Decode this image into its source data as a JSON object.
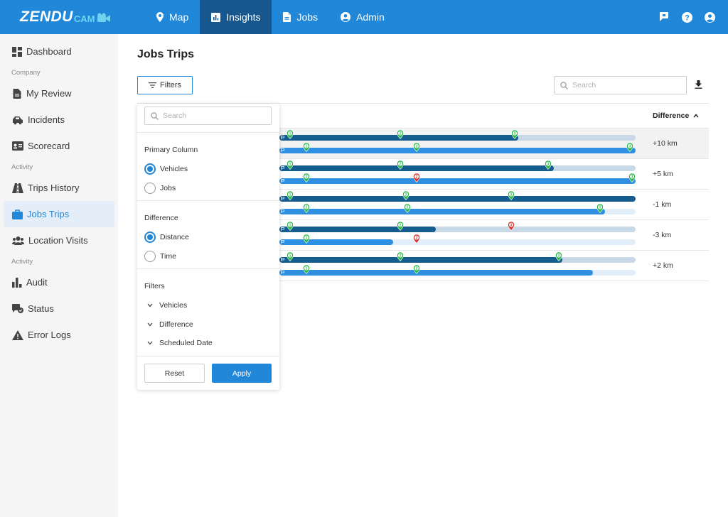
{
  "brand": {
    "logo_main": "ZENDU",
    "logo_sub": "CAM"
  },
  "nav": [
    {
      "label": "Map",
      "icon": "location-pin-icon",
      "active": false
    },
    {
      "label": "Insights",
      "icon": "bar-chart-icon",
      "active": true
    },
    {
      "label": "Jobs",
      "icon": "document-icon",
      "active": false
    },
    {
      "label": "Admin",
      "icon": "user-circle-icon",
      "active": false
    }
  ],
  "top_icons": [
    "flag-icon",
    "help-icon",
    "account-icon"
  ],
  "sidebar": {
    "dashboard": "Dashboard",
    "section_company": "Company",
    "my_review": "My Review",
    "incidents": "Incidents",
    "scorecard": "Scorecard",
    "section_activity_1": "Activity",
    "trips_history": "Trips History",
    "jobs_trips": "Jobs Trips",
    "location_visits": "Location Visits",
    "section_activity_2": "Activity",
    "audit": "Audit",
    "status": "Status",
    "error_logs": "Error Logs",
    "active": "Jobs Trips"
  },
  "main": {
    "title": "Jobs Trips",
    "filters_label": "Filters",
    "search_placeholder": "Search",
    "difference_header": "Difference"
  },
  "rows": [
    {
      "difference": "+10 km",
      "highlighted": true,
      "planned": {
        "progress": 0.67,
        "stops": [
          {
            "n": "1",
            "at": 0.03,
            "status": "ok"
          },
          {
            "n": "2",
            "at": 0.34,
            "status": "ok"
          },
          {
            "n": "3",
            "at": 0.66,
            "status": "ok"
          }
        ]
      },
      "actual": {
        "progress": 1.0,
        "stops": [
          {
            "n": "1",
            "at": 0.075,
            "status": "ok"
          },
          {
            "n": "2",
            "at": 0.385,
            "status": "ok"
          },
          {
            "n": "3",
            "at": 0.985,
            "status": "ok"
          }
        ]
      }
    },
    {
      "difference": "+5 km",
      "highlighted": false,
      "planned": {
        "progress": 0.77,
        "stops": [
          {
            "n": "1",
            "at": 0.03,
            "status": "ok"
          },
          {
            "n": "2",
            "at": 0.34,
            "status": "ok"
          },
          {
            "n": "3",
            "at": 0.755,
            "status": "ok"
          }
        ]
      },
      "actual": {
        "progress": 1.0,
        "stops": [
          {
            "n": "1",
            "at": 0.075,
            "status": "ok"
          },
          {
            "n": "2",
            "at": 0.385,
            "status": "late"
          },
          {
            "n": "3",
            "at": 0.99,
            "status": "ok"
          }
        ]
      }
    },
    {
      "difference": "-1 km",
      "highlighted": false,
      "planned": {
        "progress": 1.0,
        "stops": [
          {
            "n": "1",
            "at": 0.03,
            "status": "ok"
          },
          {
            "n": "2",
            "at": 0.355,
            "status": "ok"
          },
          {
            "n": "3",
            "at": 0.65,
            "status": "ok"
          }
        ]
      },
      "actual": {
        "progress": 0.915,
        "stops": [
          {
            "n": "1",
            "at": 0.075,
            "status": "ok"
          },
          {
            "n": "2",
            "at": 0.36,
            "status": "ok"
          },
          {
            "n": "3",
            "at": 0.9,
            "status": "ok"
          }
        ]
      }
    },
    {
      "difference": "-3 km",
      "highlighted": false,
      "planned": {
        "progress": 0.44,
        "stops": [
          {
            "n": "1",
            "at": 0.03,
            "status": "ok"
          },
          {
            "n": "2",
            "at": 0.34,
            "status": "ok"
          },
          {
            "n": "3",
            "at": 0.65,
            "status": "late"
          }
        ]
      },
      "actual": {
        "progress": 0.32,
        "stops": [
          {
            "n": "1",
            "at": 0.075,
            "status": "ok"
          },
          {
            "n": "2",
            "at": 0.385,
            "status": "late"
          }
        ]
      }
    },
    {
      "difference": "+2 km",
      "highlighted": false,
      "planned": {
        "progress": 0.795,
        "stops": [
          {
            "n": "1",
            "at": 0.03,
            "status": "ok"
          },
          {
            "n": "2",
            "at": 0.34,
            "status": "ok"
          },
          {
            "n": "3",
            "at": 0.785,
            "status": "ok"
          }
        ]
      },
      "actual": {
        "progress": 0.88,
        "stops": [
          {
            "n": "1",
            "at": 0.075,
            "status": "ok"
          },
          {
            "n": "2",
            "at": 0.385,
            "status": "ok"
          }
        ]
      }
    }
  ],
  "filter_panel": {
    "search_placeholder": "Search",
    "primary_column_title": "Primary Column",
    "primary_options": [
      "Vehicles",
      "Jobs"
    ],
    "primary_selected": "Vehicles",
    "difference_title": "Difference",
    "difference_options": [
      "Distance",
      "Time"
    ],
    "difference_selected": "Distance",
    "filters_title": "Filters",
    "filter_groups": [
      "Vehicles",
      "Difference",
      "Scheduled Date"
    ],
    "reset_label": "Reset",
    "apply_label": "Apply"
  },
  "colors": {
    "brand_blue": "#2187d8",
    "nav_active": "#17578e",
    "planned_fill": "#155c8f",
    "actual_fill": "#2f8fe0",
    "stop_ok": "#2db84a",
    "stop_late": "#d9342b"
  }
}
